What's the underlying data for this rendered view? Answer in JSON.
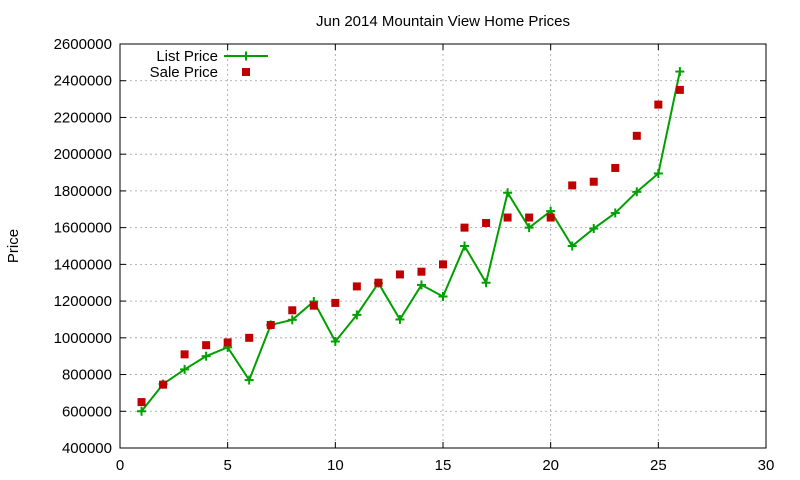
{
  "chart_data": {
    "type": "scatter",
    "title": "Jun 2014 Mountain View Home Prices",
    "xlabel": "",
    "ylabel": "Price",
    "xlim": [
      0,
      30
    ],
    "ylim": [
      400000,
      2600000
    ],
    "x_ticks": [
      0,
      5,
      10,
      15,
      20,
      25,
      30
    ],
    "y_ticks": [
      400000,
      600000,
      800000,
      1000000,
      1200000,
      1400000,
      1600000,
      1800000,
      2000000,
      2200000,
      2400000,
      2600000
    ],
    "grid": true,
    "legend_position": "top-left",
    "series": [
      {
        "name": "List Price",
        "style": "linespoints",
        "color": "#00a000",
        "marker": "plus",
        "x": [
          1,
          2,
          3,
          4,
          5,
          6,
          7,
          8,
          9,
          10,
          11,
          12,
          13,
          14,
          15,
          16,
          17,
          18,
          19,
          20,
          21,
          22,
          23,
          24,
          25,
          26
        ],
        "y": [
          600000,
          748000,
          828000,
          900000,
          948000,
          770000,
          1070000,
          1098000,
          1198000,
          980000,
          1125000,
          1298000,
          1100000,
          1288000,
          1225000,
          1500000,
          1300000,
          1790000,
          1600000,
          1690000,
          1500000,
          1595000,
          1680000,
          1795000,
          1895000,
          2450000
        ]
      },
      {
        "name": "Sale Price",
        "style": "points",
        "color": "#c00000",
        "marker": "square",
        "x": [
          1,
          2,
          3,
          4,
          5,
          6,
          7,
          8,
          9,
          10,
          11,
          12,
          13,
          14,
          15,
          16,
          17,
          18,
          19,
          20,
          21,
          22,
          23,
          24,
          25,
          26
        ],
        "y": [
          650000,
          745000,
          910000,
          960000,
          975000,
          1000000,
          1070000,
          1150000,
          1175000,
          1190000,
          1280000,
          1300000,
          1345000,
          1360000,
          1400000,
          1600000,
          1625000,
          1655000,
          1655000,
          1655000,
          1830000,
          1850000,
          1925000,
          2100000,
          2270000,
          2350000
        ]
      }
    ]
  }
}
